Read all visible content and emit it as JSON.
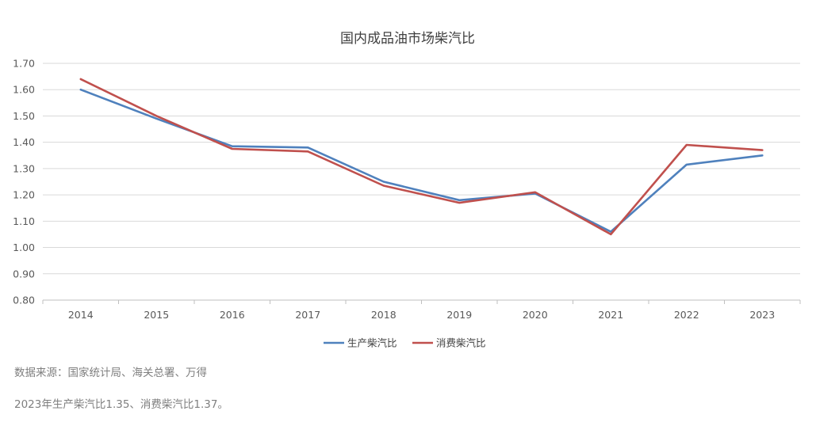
{
  "chart_data": {
    "type": "line",
    "title": "国内成品油市场柴汽比",
    "categories": [
      "2014",
      "2015",
      "2016",
      "2017",
      "2018",
      "2019",
      "2020",
      "2021",
      "2022",
      "2023"
    ],
    "series": [
      {
        "name": "生产柴汽比",
        "color": "#4f81bd",
        "values": [
          1.6,
          1.49,
          1.385,
          1.38,
          1.25,
          1.18,
          1.205,
          1.06,
          1.315,
          1.35
        ]
      },
      {
        "name": "消费柴汽比",
        "color": "#c0504d",
        "values": [
          1.64,
          1.5,
          1.375,
          1.365,
          1.235,
          1.17,
          1.21,
          1.05,
          1.39,
          1.37
        ]
      }
    ],
    "ylim": [
      0.8,
      1.7
    ],
    "yticks": [
      "0.80",
      "0.90",
      "1.00",
      "1.10",
      "1.20",
      "1.30",
      "1.40",
      "1.50",
      "1.60",
      "1.70"
    ],
    "grid": true,
    "legend": "bottom"
  },
  "source": "数据来源：国家统计局、海关总署、万得",
  "summary": "2023年生产柴汽比1.35、消费柴汽比1.37。"
}
